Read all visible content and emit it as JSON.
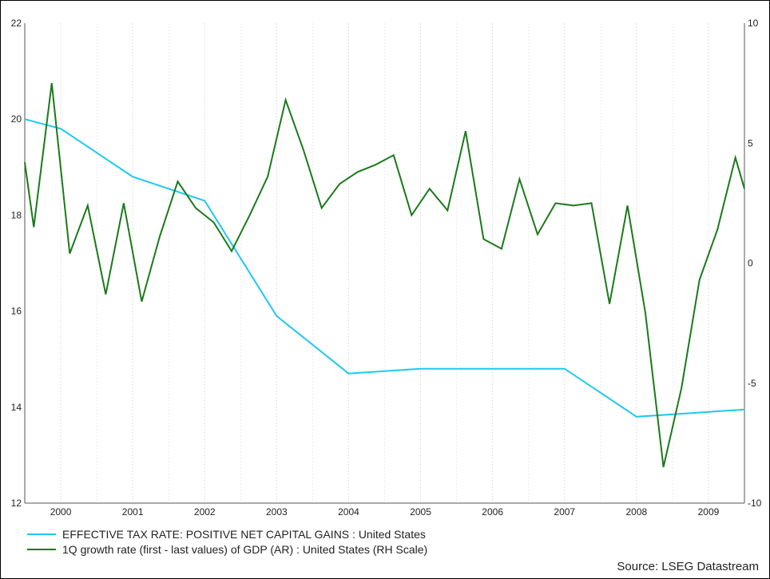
{
  "chart_data": {
    "type": "line",
    "x_ticks": [
      "2000",
      "2001",
      "2002",
      "2003",
      "2004",
      "2005",
      "2006",
      "2007",
      "2008",
      "2009"
    ],
    "x_range": [
      1999.5,
      2009.5
    ],
    "y_left": {
      "range": [
        12,
        22
      ],
      "ticks": [
        "12",
        "14",
        "16",
        "18",
        "20",
        "22"
      ]
    },
    "y_right": {
      "range": [
        -10,
        10
      ],
      "ticks": [
        "-10",
        "-5",
        "0",
        "5",
        "10"
      ]
    },
    "grid": {
      "vertical": true,
      "horizontal": false
    },
    "legend_position": "bottom-left",
    "series": [
      {
        "name": "EFFECTIVE TAX RATE: POSITIVE NET CAPITAL GAINS : United States",
        "axis": "left",
        "color": "#1ec8f0",
        "x": [
          1999.5,
          2000.0,
          2001.0,
          2002.0,
          2003.0,
          2004.0,
          2005.0,
          2006.0,
          2007.0,
          2008.0,
          2009.5
        ],
        "y": [
          20.0,
          19.8,
          18.8,
          18.3,
          15.9,
          14.7,
          14.8,
          14.8,
          14.8,
          13.8,
          13.95
        ]
      },
      {
        "name": "1Q growth rate (first - last values) of GDP (AR) : United States (RH Scale)",
        "axis": "right",
        "color": "#1a7a1a",
        "x": [
          1999.5,
          1999.625,
          1999.875,
          2000.125,
          2000.375,
          2000.625,
          2000.875,
          2001.125,
          2001.375,
          2001.625,
          2001.875,
          2002.125,
          2002.375,
          2002.625,
          2002.875,
          2003.125,
          2003.375,
          2003.625,
          2003.875,
          2004.125,
          2004.375,
          2004.625,
          2004.875,
          2005.125,
          2005.375,
          2005.625,
          2005.875,
          2006.125,
          2006.375,
          2006.625,
          2006.875,
          2007.125,
          2007.375,
          2007.625,
          2007.875,
          2008.125,
          2008.375,
          2008.625,
          2008.875,
          2009.125,
          2009.375,
          2009.5
        ],
        "y": [
          4.2,
          1.5,
          7.5,
          0.4,
          2.4,
          -1.3,
          2.5,
          -1.6,
          1.1,
          3.4,
          2.3,
          1.7,
          0.5,
          2.0,
          3.6,
          6.8,
          4.7,
          2.3,
          3.3,
          3.8,
          4.1,
          4.5,
          2.0,
          3.1,
          2.2,
          5.5,
          1.0,
          0.6,
          3.5,
          1.2,
          2.5,
          2.4,
          2.5,
          -1.7,
          2.4,
          -2.1,
          -8.5,
          -5.2,
          -0.7,
          1.4,
          4.4,
          3.1
        ]
      }
    ]
  },
  "source": "Source: LSEG Datastream"
}
